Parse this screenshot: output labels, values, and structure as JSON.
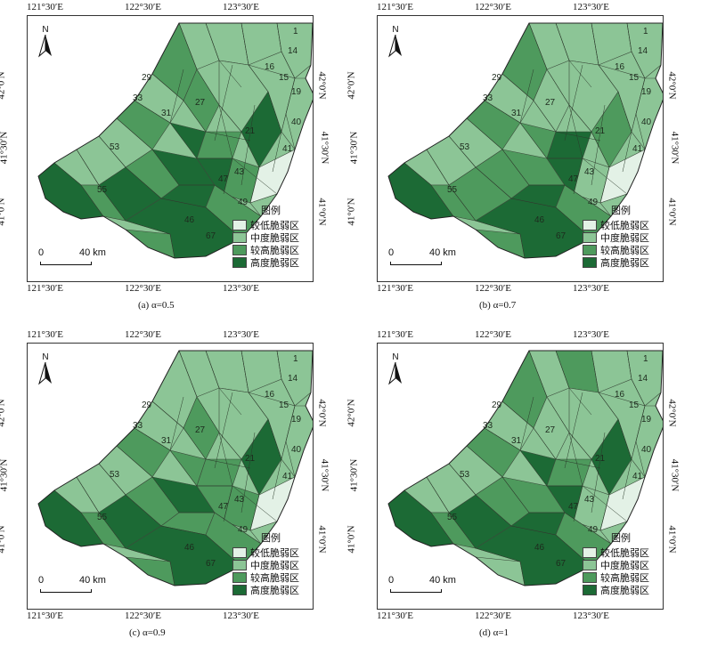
{
  "lon_labels": [
    "121°30′E",
    "122°30′E",
    "123°30′E"
  ],
  "lat_labels": [
    "42°0′N",
    "41°30′N",
    "41°0′N"
  ],
  "north": "N",
  "scale_zero": "0",
  "scale_end": "40 km",
  "legend_title": "图例",
  "legend_items": [
    {
      "label": "较低脆弱区",
      "color": "#e3f1e6"
    },
    {
      "label": "中度脆弱区",
      "color": "#8cc596"
    },
    {
      "label": "较高脆弱区",
      "color": "#4e9a5d"
    },
    {
      "label": "高度脆弱区",
      "color": "#1c6a35"
    }
  ],
  "region_labels": [
    "1",
    "14",
    "16",
    "15",
    "19",
    "29",
    "33",
    "31",
    "27",
    "21",
    "40",
    "41",
    "43",
    "53",
    "55",
    "67",
    "47",
    "46",
    "49"
  ],
  "panels": [
    {
      "caption": "(a) α=0.5"
    },
    {
      "caption": "(b) α=0.7"
    },
    {
      "caption": "(c) α=0.9"
    },
    {
      "caption": "(d) α=1"
    }
  ]
}
